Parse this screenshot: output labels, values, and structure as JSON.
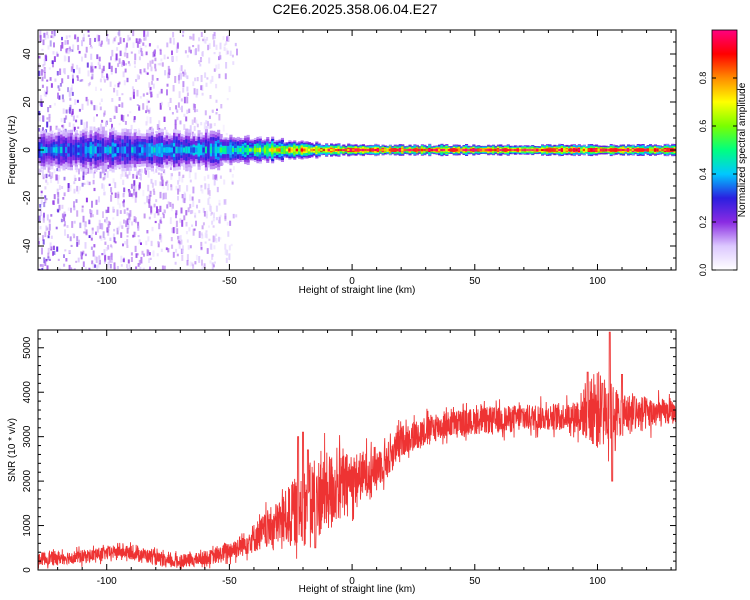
{
  "title": "C2E6.2025.358.06.04.E27",
  "chart_data": [
    {
      "type": "heatmap",
      "title": "C2E6.2025.358.06.04.E27",
      "xlabel": "Height of straight line (km)",
      "ylabel": "Frequency (Hz)",
      "xlim": [
        -128,
        132
      ],
      "ylim": [
        -50,
        50
      ],
      "x_ticks": [
        -100,
        -50,
        0,
        50,
        100
      ],
      "y_ticks": [
        -40,
        -20,
        0,
        20,
        40
      ],
      "x_tick_labels": [
        "-100",
        "-50",
        "0",
        "50",
        "100"
      ],
      "y_tick_labels": [
        "-40",
        "-20",
        "0",
        "20",
        "40"
      ],
      "grid": false,
      "description_points": {
        "band_center_hz": 0,
        "band_halfwidth_hz": [
          [
            -128,
            8
          ],
          [
            -60,
            7
          ],
          [
            -40,
            5
          ],
          [
            -20,
            3
          ],
          [
            0,
            2
          ],
          [
            130,
            2
          ]
        ],
        "peak_amplitude": [
          [
            -128,
            0.3
          ],
          [
            -60,
            0.35
          ],
          [
            -40,
            0.5
          ],
          [
            -20,
            0.75
          ],
          [
            0,
            0.9
          ],
          [
            130,
            0.9
          ]
        ],
        "scatter_extent_km": [
          -128,
          -45
        ]
      },
      "colorbar": {
        "label": "Normalized spectral amplitude",
        "range": [
          0.0,
          1.0
        ],
        "ticks": [
          0.0,
          0.2,
          0.4,
          0.6,
          0.8
        ],
        "tick_labels": [
          "0.0",
          "0.2",
          "0.4",
          "0.6",
          "0.8"
        ],
        "colormap": [
          "#ffffff",
          "#dcc8ff",
          "#8a2be2",
          "#2a1fe0",
          "#00c8ff",
          "#00ff80",
          "#7aff00",
          "#ffff00",
          "#ff8c00",
          "#ff0000",
          "#ff0080"
        ]
      }
    },
    {
      "type": "line",
      "title": "",
      "xlabel": "Height of straight line (km)",
      "ylabel": "SNR (10 * v/v)",
      "xlim": [
        -128,
        132
      ],
      "ylim": [
        0,
        5400
      ],
      "x_ticks": [
        -100,
        -50,
        0,
        50,
        100
      ],
      "y_ticks": [
        0,
        1000,
        2000,
        3000,
        4000,
        5000
      ],
      "x_tick_labels": [
        "-100",
        "-50",
        "0",
        "50",
        "100"
      ],
      "y_tick_labels": [
        "0",
        "1000",
        "2000",
        "3000",
        "4000",
        "5000"
      ],
      "grid": false,
      "series": [
        {
          "name": "SNR",
          "color": "#ee3333",
          "trend": {
            "x": [
              -128,
              -110,
              -95,
              -85,
              -75,
              -65,
              -55,
              -45,
              -35,
              -25,
              -15,
              -5,
              5,
              15,
              20,
              30,
              40,
              50,
              60,
              70,
              80,
              90,
              100,
              110,
              120,
              132
            ],
            "y": [
              250,
              300,
              420,
              350,
              180,
              220,
              320,
              550,
              900,
              1250,
              1600,
              1900,
              2150,
              2500,
              2900,
              3150,
              3280,
              3350,
              3380,
              3420,
              3450,
              3480,
              3600,
              3500,
              3520,
              3550
            ]
          },
          "noise_amplitude": {
            "x": [
              -128,
              -60,
              -45,
              -30,
              -20,
              -10,
              0,
              20,
              40,
              90,
              100,
              110,
              132
            ],
            "y": [
              150,
              150,
              250,
              500,
              900,
              900,
              600,
              350,
              300,
              300,
              900,
              500,
              250
            ]
          },
          "spikes": [
            {
              "x": -22,
              "y": 3000
            },
            {
              "x": -20,
              "y": 3100
            },
            {
              "x": -18,
              "y": 2700
            },
            {
              "x": -15,
              "y": 500
            },
            {
              "x": 96,
              "y": 4450
            },
            {
              "x": 102,
              "y": 4200
            },
            {
              "x": 105,
              "y": 5350
            },
            {
              "x": 106,
              "y": 2000
            },
            {
              "x": 110,
              "y": 4400
            },
            {
              "x": 115,
              "y": 3900
            }
          ]
        }
      ]
    }
  ]
}
